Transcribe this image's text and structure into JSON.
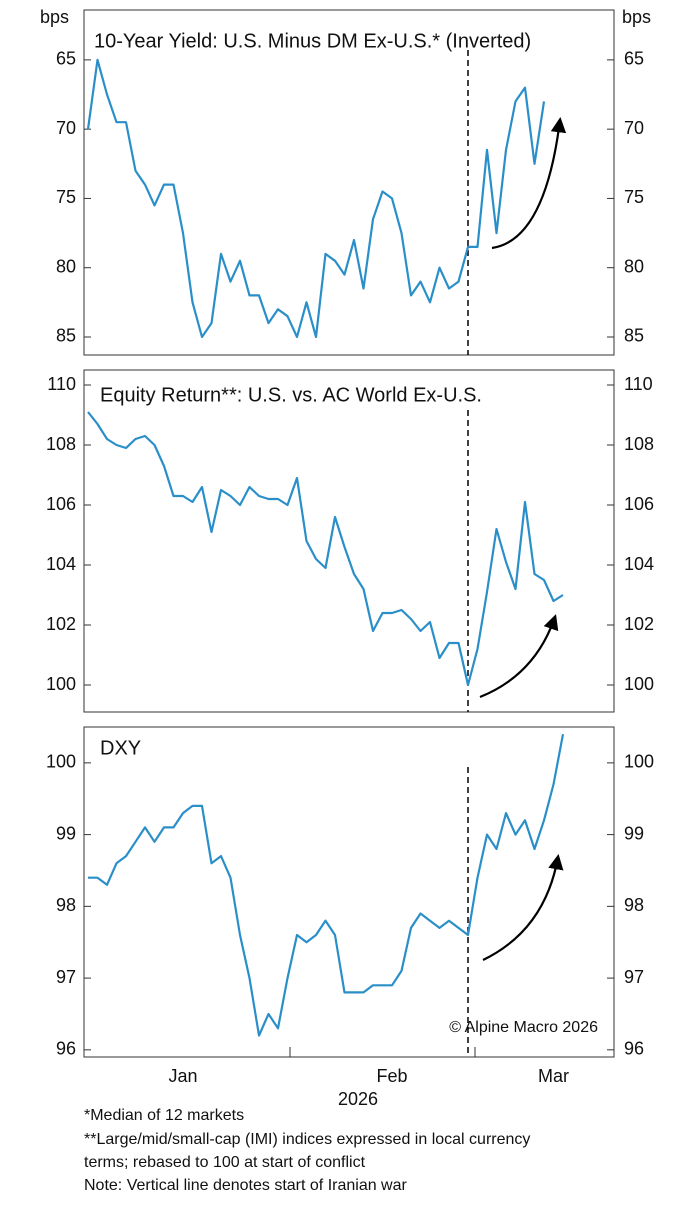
{
  "chart_data": [
    {
      "type": "line",
      "title": "10-Year Yield: U.S. Minus DM Ex-U.S.* (Inverted)",
      "y_unit": "bps",
      "inverted": true,
      "ylim": [
        61.4,
        86.3
      ],
      "yticks": [
        65,
        70,
        75,
        80,
        85
      ],
      "vline": 40,
      "series": [
        {
          "name": "10-Year Yield",
          "color": "#2a8fc9",
          "values": [
            70,
            65,
            67.5,
            69.5,
            69.5,
            73,
            74,
            75.5,
            74,
            74,
            77.5,
            82.5,
            85,
            84,
            79,
            81,
            79.5,
            82,
            82,
            84,
            83,
            83.5,
            85,
            82.5,
            85,
            79,
            79.5,
            80.5,
            78,
            81.5,
            76.5,
            74.5,
            75,
            77.5,
            82,
            81,
            82.5,
            80,
            81.5,
            81,
            78.5,
            78.5,
            71.5,
            77.5,
            71.5,
            68,
            67,
            72.5,
            68,
            null,
            null
          ]
        }
      ]
    },
    {
      "type": "line",
      "title": "Equity Return**: U.S. vs. AC World Ex-U.S.",
      "ylim": [
        99.1,
        110.5
      ],
      "yticks": [
        100,
        102,
        104,
        106,
        108,
        110
      ],
      "vline": 40,
      "series": [
        {
          "name": "Equity Return",
          "color": "#2a8fc9",
          "values": [
            109.1,
            108.7,
            108.2,
            108.0,
            107.9,
            108.2,
            108.3,
            108.0,
            107.3,
            106.3,
            106.3,
            106.1,
            106.6,
            105.1,
            106.5,
            106.3,
            106.0,
            106.6,
            106.3,
            106.2,
            106.2,
            106.0,
            106.9,
            104.8,
            104.2,
            103.9,
            105.6,
            104.6,
            103.7,
            103.2,
            101.8,
            102.4,
            102.4,
            102.5,
            102.2,
            101.8,
            102.1,
            100.9,
            101.4,
            101.4,
            100.0,
            101.2,
            103.1,
            105.2,
            104.1,
            103.2,
            106.1,
            103.7,
            103.5,
            102.8,
            103.0
          ]
        }
      ]
    },
    {
      "type": "line",
      "title": "DXY",
      "annotation": "© Alpine Macro 2026",
      "xlabel": "2026",
      "ylim": [
        95.9,
        100.5
      ],
      "yticks": [
        96,
        97,
        98,
        99,
        100
      ],
      "vline": 40,
      "categories": [
        null,
        null,
        null,
        null,
        null,
        null,
        null,
        null,
        null,
        null,
        "Jan",
        null,
        null,
        null,
        null,
        null,
        null,
        null,
        null,
        null,
        null,
        null,
        null,
        null,
        null,
        null,
        null,
        null,
        null,
        null,
        null,
        null,
        "Feb",
        null,
        null,
        null,
        null,
        null,
        null,
        null,
        null,
        null,
        null,
        null,
        null,
        null,
        null,
        null,
        null,
        "Mar",
        null
      ],
      "series": [
        {
          "name": "DXY",
          "color": "#2a8fc9",
          "values": [
            98.4,
            98.4,
            98.3,
            98.6,
            98.7,
            98.9,
            99.1,
            98.9,
            99.1,
            99.1,
            99.3,
            99.4,
            99.4,
            98.6,
            98.7,
            98.4,
            97.6,
            97.0,
            96.2,
            96.5,
            96.3,
            97.0,
            97.6,
            97.5,
            97.6,
            97.8,
            97.6,
            96.8,
            96.8,
            96.8,
            96.9,
            96.9,
            96.9,
            97.1,
            97.7,
            97.9,
            97.8,
            97.7,
            97.8,
            97.7,
            97.6,
            98.4,
            99.0,
            98.8,
            99.3,
            99.0,
            99.2,
            98.8,
            99.2,
            99.7,
            100.4
          ]
        }
      ]
    }
  ],
  "footnotes": [
    "*Median of 12 markets",
    "**Large/mid/small-cap (IMI) indices expressed in local currency",
    "terms; rebased to 100 at start of conflict",
    "Note: Vertical line denotes start of Iranian war"
  ]
}
